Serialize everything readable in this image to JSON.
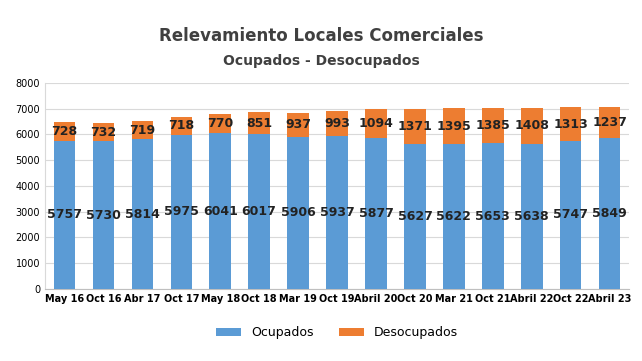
{
  "chart_data": {
    "type": "bar",
    "title": "Relevamiento Locales Comerciales",
    "subtitle": "Ocupados - Desocupados",
    "categories": [
      "May 16",
      "Oct 16",
      "Abr 17",
      "Oct 17",
      "May 18",
      "Oct 18",
      "Mar 19",
      "Oct 19",
      "Abril 20",
      "Oct 20",
      "Mar 21",
      "Oct 21",
      "Abril 22",
      "Oct 22",
      "Abril 23"
    ],
    "series": [
      {
        "name": "Ocupados",
        "color": "#5b9bd5",
        "values": [
          5757,
          5730,
          5814,
          5975,
          6041,
          6017,
          5906,
          5937,
          5877,
          5627,
          5622,
          5653,
          5638,
          5747,
          5849
        ]
      },
      {
        "name": "Desocupados",
        "color": "#ed7d31",
        "values": [
          728,
          732,
          719,
          718,
          770,
          851,
          937,
          993,
          1094,
          1371,
          1395,
          1385,
          1408,
          1313,
          1237
        ]
      }
    ],
    "stacked": true,
    "data_labels": true,
    "grid": true,
    "legend": "lower center",
    "ylim": [
      0,
      8000
    ],
    "yticks": [
      0,
      1000,
      2000,
      3000,
      4000,
      5000,
      6000,
      7000,
      8000
    ]
  }
}
